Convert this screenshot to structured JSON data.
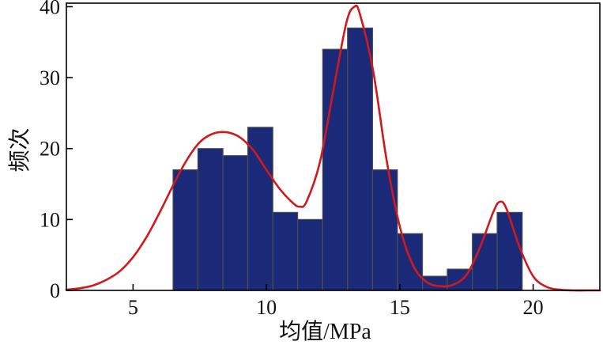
{
  "chart_data": {
    "type": "bar",
    "xlabel": "均值/MPa",
    "ylabel": "频次",
    "xlim": [
      2.5,
      22.5
    ],
    "ylim": [
      0,
      40.5
    ],
    "xticks": [
      5,
      10,
      15,
      20
    ],
    "yticks": [
      0,
      10,
      20,
      30,
      40
    ],
    "xtick_labels": [
      "5",
      "10",
      "15",
      "20"
    ],
    "ytick_labels": [
      "0",
      "10",
      "20",
      "30",
      "40"
    ],
    "grid": false,
    "bin_edges": [
      6.5,
      7.43,
      8.37,
      9.3,
      10.24,
      11.17,
      12.11,
      13.04,
      13.98,
      14.91,
      15.85,
      16.78,
      17.72,
      18.65,
      19.59
    ],
    "bin_labels": [
      "6.5–7.4",
      "7.4–8.4",
      "8.4–9.3",
      "9.3–10.2",
      "10.2–11.2",
      "11.2–12.1",
      "12.1–13.0",
      "13.0–14.0",
      "14.0–14.9",
      "14.9–15.9",
      "15.9–16.8",
      "16.8–17.7",
      "17.7–18.7",
      "18.7–19.6"
    ],
    "values": [
      17,
      20,
      19,
      23,
      11,
      10,
      34,
      37,
      17,
      8,
      2,
      3,
      8,
      11
    ],
    "bar_color": "#1b2a78",
    "bar_edge_color": "#4d4d4d",
    "series": [
      {
        "type": "line",
        "color": "#d0191c",
        "x": [
          2.5,
          3,
          3.5,
          4,
          4.5,
          5,
          5.5,
          6,
          6.5,
          7,
          7.5,
          8,
          8.5,
          9,
          9.5,
          10,
          10.5,
          11,
          11.25,
          11.5,
          12,
          12.5,
          13,
          13.3,
          13.5,
          14,
          14.5,
          15,
          15.5,
          16,
          16.5,
          17,
          17.5,
          18,
          18.5,
          18.75,
          19,
          19.5,
          20,
          20.5,
          21,
          21.5,
          22,
          22.5
        ],
        "y": [
          0.1,
          0.3,
          0.7,
          1.5,
          2.7,
          4.7,
          7.5,
          11,
          14.8,
          18.3,
          20.9,
          22.1,
          22.3,
          21.6,
          19.8,
          17,
          14.3,
          12.3,
          11.8,
          12.5,
          18,
          28,
          37.8,
          40,
          39,
          31,
          18.5,
          9,
          3.5,
          1.2,
          0.6,
          0.8,
          2.2,
          6,
          11,
          12.5,
          11.5,
          6,
          2,
          0.5,
          0.1,
          0,
          0,
          0
        ]
      }
    ]
  }
}
